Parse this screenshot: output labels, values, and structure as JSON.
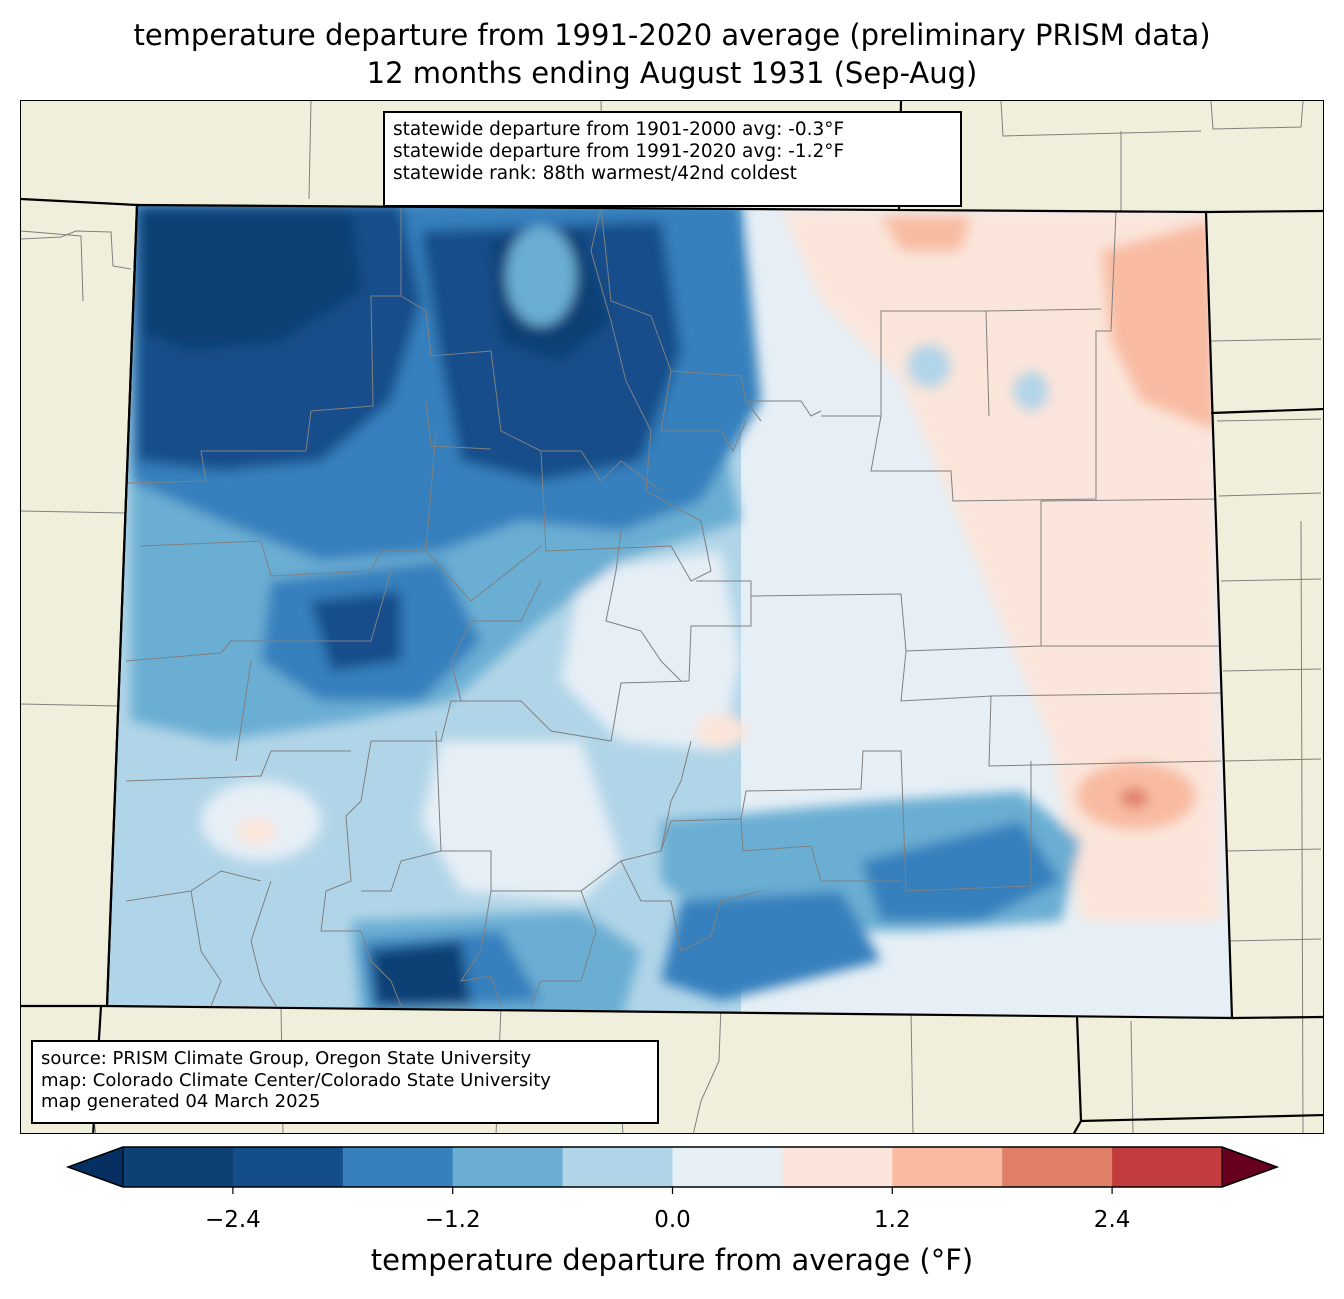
{
  "title": {
    "line1": "temperature departure from 1991-2020 average (preliminary PRISM data)",
    "line2": "12 months ending August 1931 (Sep-Aug)"
  },
  "stats_box": {
    "line1": "statewide departure from 1901-2000 avg: -0.3°F",
    "line2": "statewide departure from 1991-2020 avg: -1.2°F",
    "line3": "statewide rank: 88th warmest/42nd coldest"
  },
  "credits_box": {
    "line1": "source: PRISM Climate Group, Oregon State University",
    "line2": "map: Colorado Climate Center/Colorado State University",
    "line3": "map generated 04 March 2025"
  },
  "colorbar": {
    "label": "temperature departure from average (°F)",
    "ticks": [
      "−2.4",
      "−1.2",
      "0.0",
      "1.2",
      "2.4"
    ],
    "tick_values": [
      -2.4,
      -1.2,
      0.0,
      1.2,
      2.4
    ],
    "range": [
      -3.0,
      3.0
    ],
    "levels": [
      -3.0,
      -2.4,
      -1.8,
      -1.2,
      -0.6,
      0.0,
      0.6,
      1.2,
      1.8,
      2.4,
      3.0
    ],
    "colors": [
      "#0e3f75",
      "#144d8a",
      "#3680bd",
      "#6aaed3",
      "#b1d5e8",
      "#e6eff6",
      "#fbe5da",
      "#f8bba1",
      "#e07f68",
      "#c23c3d",
      "#8a0d23"
    ],
    "under_color": "#053061",
    "over_color": "#67001f"
  },
  "map_colors": {
    "land": "#f0efdc",
    "county_line": "#808080",
    "state_line": "#000000"
  }
}
